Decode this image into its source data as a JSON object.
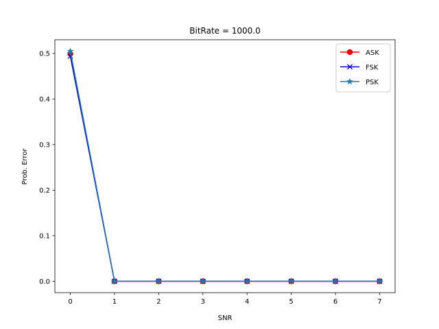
{
  "chart_data": {
    "type": "line",
    "title": "BitRate = 1000.0",
    "xlabel": "SNR",
    "ylabel": "Prob. Error",
    "x": [
      0,
      1,
      2,
      3,
      4,
      5,
      6,
      7
    ],
    "xlim": [
      -0.35,
      7.35
    ],
    "ylim": [
      -0.025,
      0.53
    ],
    "xticks": [
      "0",
      "1",
      "2",
      "3",
      "4",
      "5",
      "6",
      "7"
    ],
    "yticks": [
      "0.0",
      "0.1",
      "0.2",
      "0.3",
      "0.4",
      "0.5"
    ],
    "grid": false,
    "legend_position": "top-right",
    "series": [
      {
        "name": "ASK",
        "color": "#ff0000",
        "marker": "circle",
        "values": [
          0.499,
          0.0,
          0.0,
          0.0,
          0.0,
          0.0,
          0.0,
          0.0
        ]
      },
      {
        "name": "FSK",
        "color": "#0000cc",
        "marker": "x",
        "values": [
          0.494,
          0.0,
          0.0,
          0.0,
          0.0,
          0.0,
          0.0,
          0.0
        ]
      },
      {
        "name": "PSK",
        "color": "#1f77b4",
        "marker": "star",
        "values": [
          0.505,
          0.0,
          0.0,
          0.0,
          0.0,
          0.0,
          0.0,
          0.0
        ]
      }
    ]
  }
}
